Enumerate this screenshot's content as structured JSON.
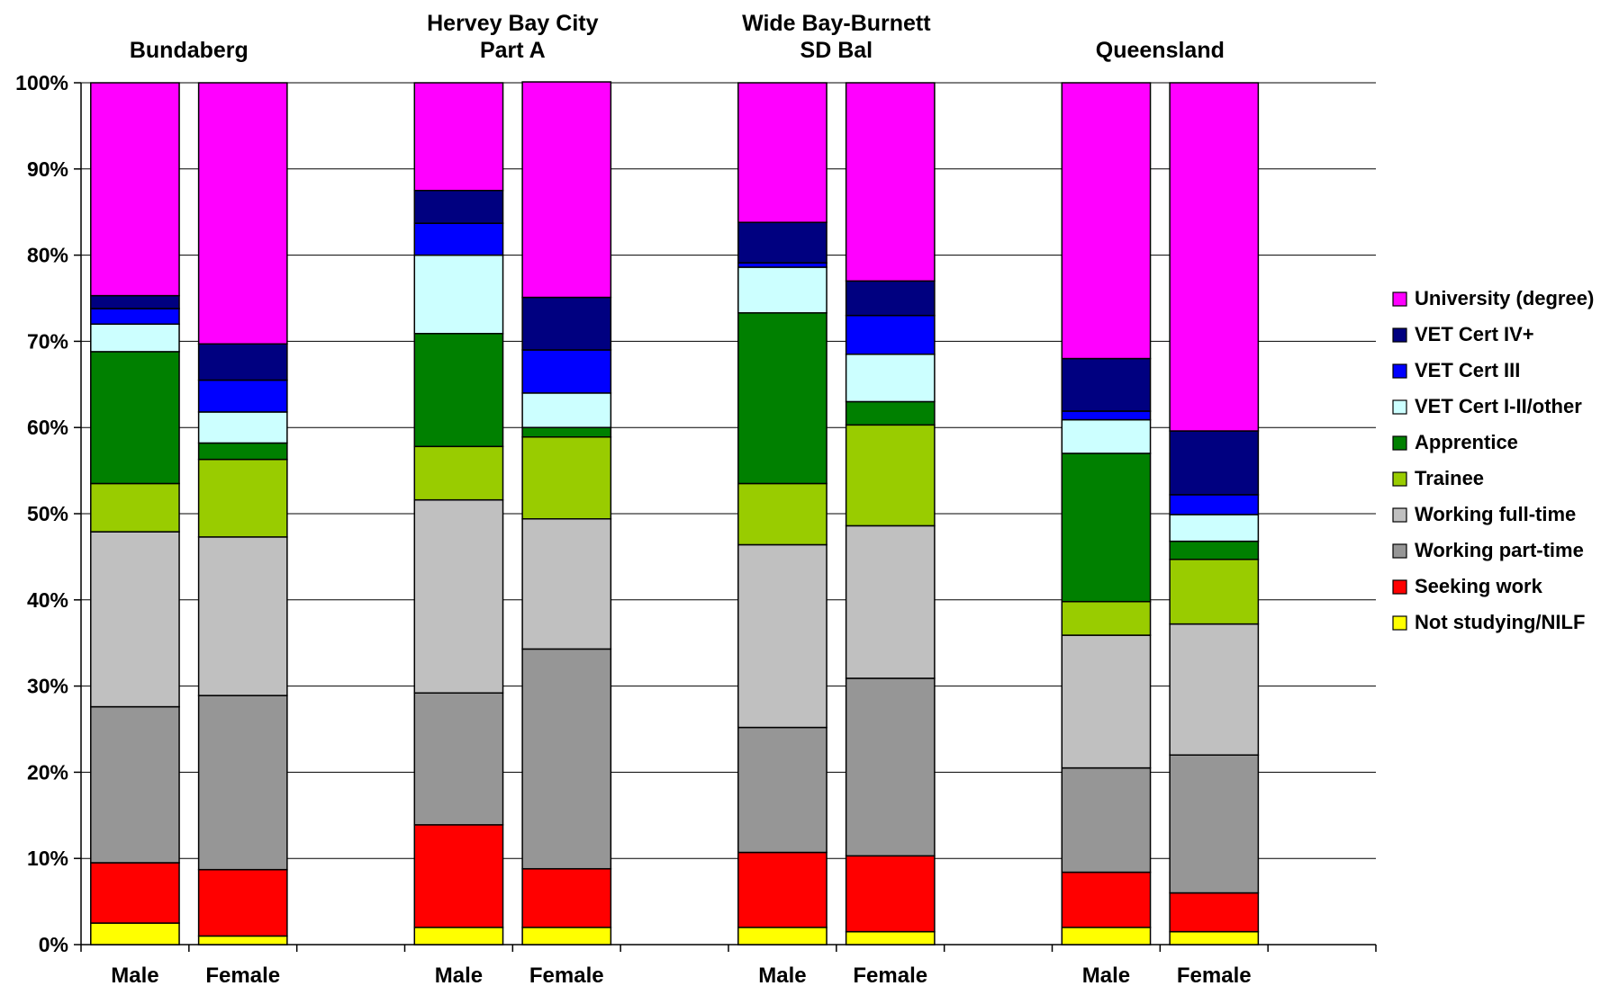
{
  "chart_data": {
    "type": "bar",
    "stacked": true,
    "normalized": true,
    "ylim": [
      0,
      100
    ],
    "yticks": [
      "0%",
      "10%",
      "20%",
      "30%",
      "40%",
      "50%",
      "60%",
      "70%",
      "80%",
      "90%",
      "100%"
    ],
    "grid": true,
    "legend_position": "right",
    "groups": [
      {
        "title_lines": [
          "Bundaberg"
        ]
      },
      {
        "title_lines": [
          "Hervey Bay City",
          "Part A"
        ]
      },
      {
        "title_lines": [
          "Wide Bay-Burnett",
          "SD Bal"
        ]
      },
      {
        "title_lines": [
          "Queensland"
        ]
      }
    ],
    "categories": [
      "Male",
      "Female",
      "Male",
      "Female",
      "Male",
      "Female",
      "Male",
      "Female"
    ],
    "category_group": [
      0,
      0,
      1,
      1,
      2,
      2,
      3,
      3
    ],
    "series": [
      {
        "name": "Not studying/NILF",
        "color": "#ffff00",
        "values": [
          2.5,
          1.0,
          2.0,
          2.0,
          2.0,
          1.5,
          2.0,
          1.5
        ]
      },
      {
        "name": "Seeking work",
        "color": "#ff0000",
        "values": [
          7.0,
          7.7,
          11.9,
          6.8,
          8.7,
          8.8,
          6.4,
          4.5
        ]
      },
      {
        "name": "Working part-time",
        "color": "#969696",
        "values": [
          18.1,
          20.2,
          15.3,
          25.5,
          14.5,
          20.6,
          12.1,
          16.0
        ]
      },
      {
        "name": "Working full-time",
        "color": "#c0c0c0",
        "values": [
          20.3,
          18.4,
          22.4,
          15.1,
          21.2,
          17.7,
          15.4,
          15.2
        ]
      },
      {
        "name": "Trainee",
        "color": "#99cc00",
        "values": [
          5.6,
          9.0,
          6.2,
          9.5,
          7.1,
          11.7,
          3.9,
          7.5
        ]
      },
      {
        "name": "Apprentice",
        "color": "#008000",
        "values": [
          15.3,
          1.9,
          13.1,
          1.1,
          19.8,
          2.7,
          17.2,
          2.1
        ]
      },
      {
        "name": "VET Cert I-II/other",
        "color": "#ccffff",
        "values": [
          3.2,
          3.6,
          9.1,
          4.0,
          5.3,
          5.5,
          3.9,
          3.1
        ]
      },
      {
        "name": "VET Cert III",
        "color": "#0000ff",
        "values": [
          1.8,
          3.7,
          3.7,
          5.0,
          0.5,
          4.5,
          1.0,
          2.3
        ]
      },
      {
        "name": "VET Cert IV+",
        "color": "#000080",
        "values": [
          1.5,
          4.2,
          3.8,
          6.1,
          4.7,
          4.0,
          6.1,
          7.4
        ]
      },
      {
        "name": "University (degree)",
        "color": "#ff00ff",
        "values": [
          24.7,
          30.3,
          12.5,
          25.0,
          16.2,
          23.0,
          32.0,
          40.4
        ]
      }
    ]
  }
}
